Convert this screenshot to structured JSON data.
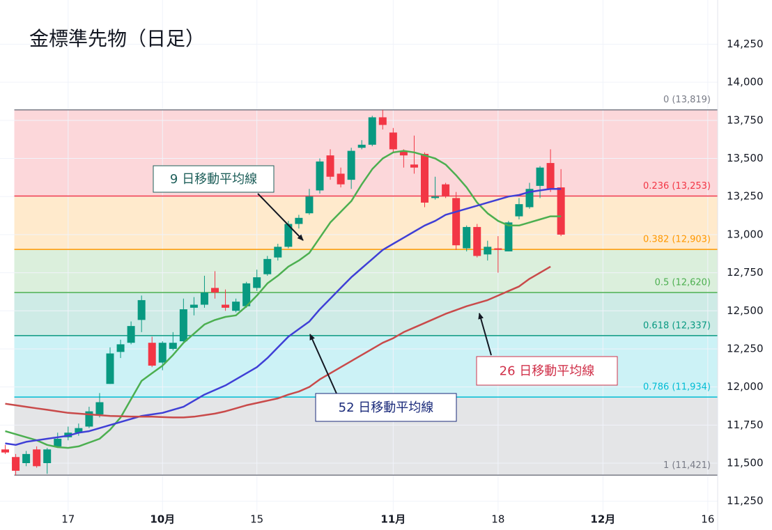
{
  "chart_data": {
    "type": "candlestick",
    "title": "金標準先物（日足）",
    "categories": [
      null,
      null,
      null,
      null,
      null,
      null,
      "17",
      null,
      null,
      null,
      null,
      null,
      null,
      null,
      null,
      "10月",
      null,
      null,
      null,
      null,
      null,
      null,
      null,
      null,
      "15",
      null,
      null,
      null,
      null,
      null,
      null,
      null,
      null,
      null,
      null,
      null,
      null,
      "11月",
      null,
      null,
      null,
      null,
      null,
      null,
      null,
      null,
      null,
      "18",
      null,
      null,
      null,
      null,
      null,
      null,
      null,
      null,
      null,
      "12月",
      null,
      null,
      null,
      null,
      null,
      null,
      null,
      null,
      null,
      "16"
    ],
    "open": [
      11590,
      11540,
      11500,
      11590,
      11500,
      11610,
      11670,
      11700,
      11740,
      11820,
      12020,
      12230,
      12290,
      12440,
      12290,
      12160,
      12250,
      12300,
      12520,
      12540,
      12650,
      12540,
      12500,
      12530,
      12650,
      12740,
      12850,
      12920,
      13070,
      13140,
      13290,
      13520,
      13400,
      13360,
      13570,
      13590,
      13770,
      13670,
      13550,
      13460,
      13530,
      13240,
      13330,
      13240,
      12910,
      13050,
      12870,
      12910,
      12890,
      13120,
      13180,
      13320,
      13470,
      13310,
      null,
      null,
      null,
      null,
      null,
      null,
      null,
      null,
      null,
      null,
      null,
      null,
      null,
      null
    ],
    "high": [
      11620,
      11560,
      11580,
      11610,
      11600,
      11700,
      11740,
      11760,
      11870,
      11960,
      12260,
      12310,
      12430,
      12600,
      12330,
      12300,
      12360,
      12580,
      12590,
      12730,
      12760,
      12640,
      12580,
      12690,
      12770,
      12860,
      12940,
      13090,
      13130,
      13300,
      13500,
      13560,
      13440,
      13570,
      13620,
      13780,
      13819,
      13700,
      13560,
      13650,
      13540,
      13380,
      13340,
      13280,
      13060,
      13070,
      12960,
      12990,
      13090,
      13240,
      13340,
      13450,
      13560,
      13430,
      null,
      null,
      null,
      null,
      null,
      null,
      null,
      null,
      null,
      null,
      null,
      null,
      null,
      null
    ],
    "low": [
      11560,
      11421,
      11480,
      11470,
      11430,
      11600,
      11650,
      11680,
      11730,
      11800,
      12020,
      12190,
      12280,
      12360,
      12130,
      12110,
      12240,
      12290,
      12470,
      12520,
      12580,
      12500,
      12490,
      12520,
      12630,
      12730,
      12830,
      12910,
      13040,
      13130,
      13270,
      13360,
      13310,
      13300,
      13560,
      13580,
      13690,
      13540,
      13440,
      13400,
      13180,
      13230,
      13240,
      12900,
      12890,
      12850,
      12830,
      12750,
      12890,
      13100,
      13170,
      13240,
      13280,
      12990,
      null,
      null,
      null,
      null,
      null,
      null,
      null,
      null,
      null,
      null,
      null,
      null,
      null,
      null
    ],
    "close": [
      11570,
      11450,
      11560,
      11480,
      11590,
      11660,
      11700,
      11730,
      11840,
      11900,
      12220,
      12280,
      12400,
      12570,
      12140,
      12290,
      12290,
      12510,
      12540,
      12620,
      12620,
      12520,
      12560,
      12680,
      12720,
      12840,
      12920,
      13070,
      13110,
      13250,
      13480,
      13380,
      13330,
      13550,
      13590,
      13770,
      13720,
      13560,
      13520,
      13440,
      13210,
      13250,
      13250,
      12930,
      13050,
      12860,
      12920,
      12900,
      13080,
      13200,
      13300,
      13440,
      13300,
      13000,
      null,
      null,
      null,
      null,
      null,
      null,
      null,
      null,
      null,
      null,
      null,
      null,
      null,
      null
    ],
    "up_color": "#089981",
    "down_color": "#f23645",
    "series": [
      {
        "color": "#4caf50",
        "values": [
          11710,
          11690,
          11670,
          11650,
          11620,
          11605,
          11600,
          11610,
          11635,
          11660,
          11720,
          11800,
          11920,
          12040,
          12090,
          12140,
          12210,
          12290,
          12350,
          12410,
          12440,
          12460,
          12470,
          12530,
          12600,
          12680,
          12730,
          12790,
          12830,
          12880,
          12980,
          13080,
          13150,
          13220,
          13330,
          13430,
          13500,
          13540,
          13550,
          13540,
          13520,
          13500,
          13460,
          13390,
          13310,
          13210,
          13140,
          13090,
          13060,
          13060,
          13080,
          13100,
          13120,
          13120,
          null,
          null,
          null,
          null,
          null,
          null,
          null,
          null,
          null,
          null,
          null,
          null,
          null,
          null
        ]
      },
      {
        "color": "#3f3fd6",
        "values": [
          11630,
          11620,
          11640,
          11650,
          11660,
          11670,
          11680,
          11700,
          11710,
          11730,
          11750,
          11770,
          11790,
          11810,
          11820,
          11830,
          11850,
          11870,
          11910,
          11950,
          11980,
          12010,
          12050,
          12090,
          12130,
          12190,
          12260,
          12330,
          12380,
          12430,
          12510,
          12580,
          12650,
          12720,
          12780,
          12840,
          12900,
          12940,
          12980,
          13020,
          13060,
          13090,
          13130,
          13150,
          13170,
          13190,
          13210,
          13230,
          13250,
          13260,
          13280,
          13290,
          13300,
          13300,
          null,
          null,
          null,
          null,
          null,
          null,
          null,
          null,
          null,
          null,
          null,
          null,
          null,
          null
        ]
      },
      {
        "color": "#c94a4a",
        "values": [
          11890,
          11880,
          11870,
          11860,
          11850,
          11840,
          11830,
          11825,
          11820,
          11815,
          11810,
          11808,
          11806,
          11805,
          11805,
          11802,
          11800,
          11800,
          11805,
          11815,
          11825,
          11840,
          11860,
          11880,
          11895,
          11910,
          11925,
          11950,
          11970,
          12000,
          12050,
          12090,
          12130,
          12170,
          12210,
          12250,
          12290,
          12320,
          12360,
          12390,
          12420,
          12450,
          12480,
          12505,
          12530,
          12550,
          12570,
          12600,
          12630,
          12660,
          12710,
          12750,
          12790,
          null,
          null,
          null,
          null,
          null,
          null,
          null,
          null,
          null,
          null,
          null,
          null,
          null,
          null,
          null
        ]
      }
    ],
    "fib_levels": [
      {
        "value": 13819,
        "label": "0 (13,819)",
        "color": "#787b86",
        "fill": "rgba(242,54,69,0.2)"
      },
      {
        "value": 13253,
        "label": "0.236 (13,253)",
        "color": "#f23645",
        "fill": "rgba(255,152,0,0.2)"
      },
      {
        "value": 12903,
        "label": "0.382 (12,903)",
        "color": "#ff9800",
        "fill": "rgba(76,175,80,0.2)"
      },
      {
        "value": 12620,
        "label": "0.5 (12,620)",
        "color": "#4caf50",
        "fill": "rgba(8,153,129,0.2)"
      },
      {
        "value": 12337,
        "label": "0.618 (12,337)",
        "color": "#089981",
        "fill": "rgba(0,188,212,0.2)"
      },
      {
        "value": 11934,
        "label": "0.786 (11,934)",
        "color": "#00bcd4",
        "fill": "rgba(120,123,134,0.2)"
      },
      {
        "value": 11421,
        "label": "1 (11,421)",
        "color": "#787b86"
      }
    ],
    "annotations": [
      {
        "text": "9 日移動平均線",
        "color": "#1e5f5a"
      },
      {
        "text": "52 日移動平均線",
        "color": "#1a2a7a"
      },
      {
        "text": "26 日移動平均線",
        "color": "#d0314a"
      }
    ],
    "ylim": [
      11180,
      14540
    ],
    "yticks": [
      {
        "value": 11250,
        "label": "11,250"
      },
      {
        "value": 11500,
        "label": "11,500"
      },
      {
        "value": 11750,
        "label": "11,750"
      },
      {
        "value": 12000,
        "label": "12,000"
      },
      {
        "value": 12250,
        "label": "12,250"
      },
      {
        "value": 12500,
        "label": "12,500"
      },
      {
        "value": 12750,
        "label": "12,750"
      },
      {
        "value": 13000,
        "label": "13,000"
      },
      {
        "value": 13250,
        "label": "13,250"
      },
      {
        "value": 13500,
        "label": "13,500"
      },
      {
        "value": 13750,
        "label": "13,750"
      },
      {
        "value": 14000,
        "label": "14,000"
      },
      {
        "value": 14250,
        "label": "14,250"
      }
    ],
    "grid": true
  }
}
